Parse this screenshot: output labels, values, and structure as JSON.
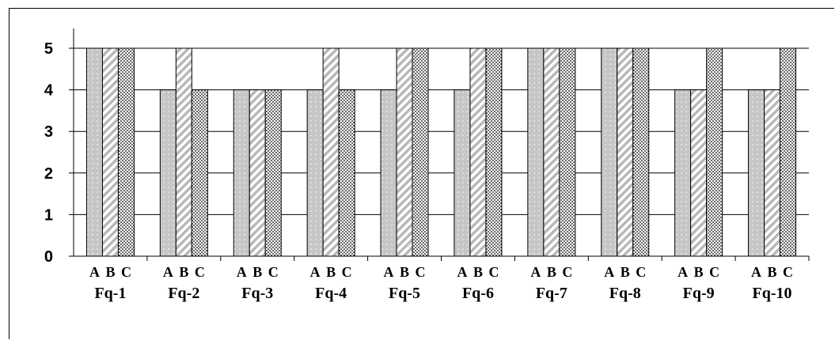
{
  "chart_data": {
    "type": "bar",
    "categories": [
      "Fq-1",
      "Fq-2",
      "Fq-3",
      "Fq-4",
      "Fq-5",
      "Fq-6",
      "Fq-7",
      "Fq-8",
      "Fq-9",
      "Fq-10"
    ],
    "series": [
      {
        "name": "A",
        "pattern": "dots-on-gray",
        "values": [
          5,
          4,
          4,
          4,
          4,
          4,
          5,
          5,
          4,
          4
        ]
      },
      {
        "name": "B",
        "pattern": "diagonal-hatch",
        "values": [
          5,
          5,
          4,
          5,
          5,
          5,
          5,
          5,
          4,
          4
        ]
      },
      {
        "name": "C",
        "pattern": "dense-dots",
        "values": [
          5,
          4,
          4,
          4,
          5,
          5,
          5,
          5,
          5,
          5
        ]
      }
    ],
    "bar_labels": [
      "A",
      "B",
      "C"
    ],
    "yticks": [
      "0",
      "1",
      "2",
      "3",
      "4",
      "5"
    ],
    "ylim": [
      0,
      5
    ],
    "grid": true,
    "colors": {
      "bar_a_fill": "#c6c6c6",
      "bar_border": "#000000",
      "grid": "#000000"
    }
  }
}
